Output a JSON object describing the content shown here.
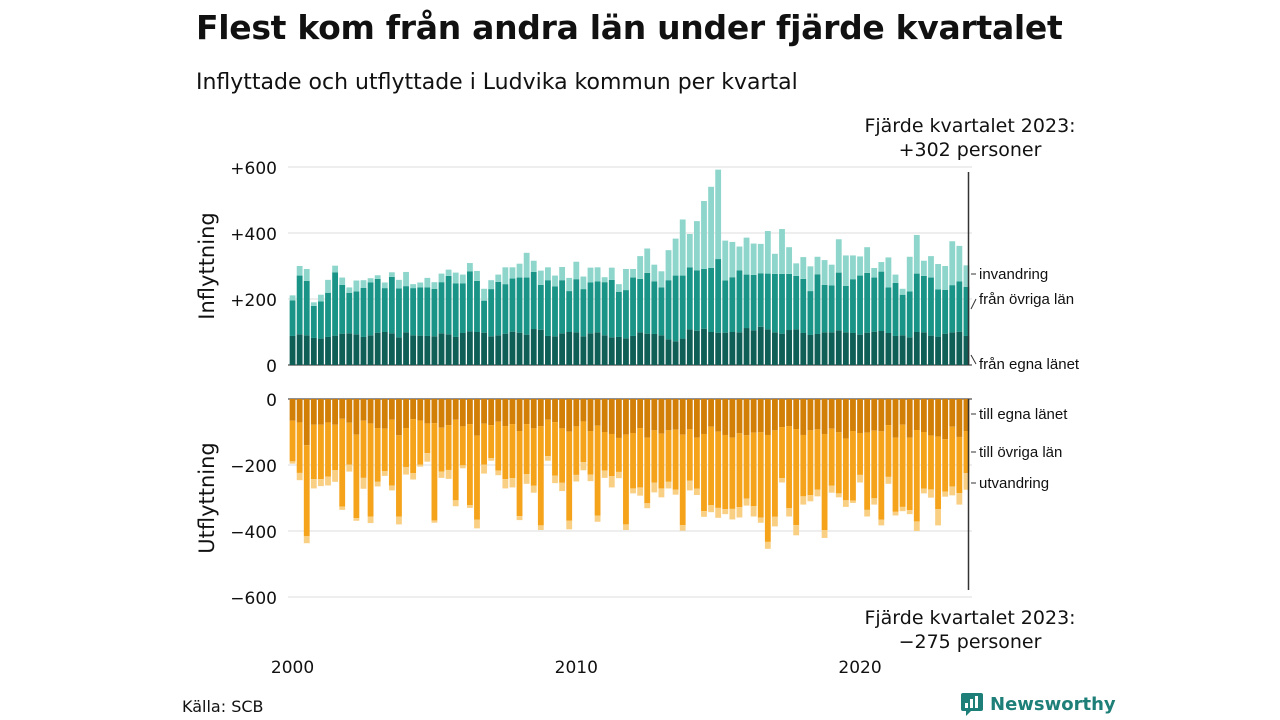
{
  "title": "Flest kom från andra län under fjärde kvartalet",
  "subtitle": "Inflyttade och utflyttade i Ludvika kommun per kvartal",
  "note_top": {
    "line1": "Fjärde kvartalet 2023:",
    "line2": "+302 personer"
  },
  "note_bottom": {
    "line1": "Fjärde kvartalet 2023:",
    "line2": "−275 personer"
  },
  "source": "Källa: SCB",
  "brand": "Newsworthy",
  "colors": {
    "in_own": "#0f5f57",
    "in_other": "#1a9486",
    "in_immig": "#8ed6cc",
    "out_own": "#d27f08",
    "out_other": "#f5a31a",
    "out_emig": "#f9cf83",
    "grid": "#dddddd",
    "brand": "#1e7f79"
  },
  "chart_data": {
    "type": "bar",
    "stacked": true,
    "x_start": "2000 Q1",
    "x_end": "2023 Q4",
    "x_ticks": [
      "2000",
      "2010",
      "2020"
    ],
    "panels": [
      {
        "axis_label": "Inflyttning",
        "ylim": [
          0,
          600
        ],
        "y_ticks": [
          "0",
          "+200",
          "+400",
          "+600"
        ],
        "series": [
          {
            "name": "från egna länet",
            "values": [
              88,
              93,
              90,
              82,
              80,
              85,
              89,
              95,
              96,
              93,
              85,
              90,
              98,
              100,
              96,
              84,
              99,
              90,
              89,
              88,
              87,
              96,
              93,
              85,
              97,
              102,
              100,
              98,
              87,
              90,
              95,
              101,
              98,
              92,
              109,
              107,
              88,
              87,
              96,
              100,
              99,
              87,
              96,
              99,
              90,
              84,
              85,
              81,
              88,
              99,
              95,
              94,
              90,
              78,
              72,
              80,
              108,
              104,
              110,
              100,
              98,
              98,
              100,
              99,
              112,
              105,
              116,
              108,
              99,
              95,
              106,
              108,
              97,
              91,
              94,
              99,
              99,
              105,
              99,
              97,
              92,
              98,
              101,
              103,
              97,
              88,
              90,
              84,
              100,
              99,
              89,
              86,
              95,
              99,
              101,
              88
            ]
          },
          {
            "name": "från övriga län",
            "values": [
              108,
              178,
              165,
              97,
              113,
              134,
              192,
              148,
              123,
              130,
              149,
              160,
              163,
              133,
              171,
              148,
              140,
              143,
              146,
              147,
              144,
              155,
              177,
              162,
              150,
              182,
              155,
              97,
              143,
              162,
              150,
              161,
              167,
              173,
              173,
              136,
              169,
              151,
              161,
              124,
              161,
              143,
              154,
              154,
              161,
              174,
              137,
              146,
              177,
              162,
              184,
              159,
              145,
              179,
              199,
              191,
              188,
              183,
              181,
              194,
              223,
              158,
              166,
              188,
              162,
              168,
              162,
              169,
              177,
              181,
              170,
              162,
              164,
              133,
              181,
              144,
              142,
              175,
              141,
              163,
              179,
              181,
              164,
              180,
              138,
              161,
              123,
              139,
              177,
              171,
              176,
              143,
              133,
              143,
              152,
              149
            ]
          },
          {
            "name": "invandring",
            "values": [
              15,
              29,
              36,
              11,
              20,
              39,
              20,
              22,
              16,
              33,
              23,
              13,
              11,
              17,
              14,
              26,
              43,
              12,
              15,
              29,
              20,
              26,
              19,
              33,
              27,
              25,
              30,
              36,
              27,
              22,
              51,
              34,
              42,
              75,
              34,
              43,
              39,
              33,
              40,
              40,
              53,
              38,
              45,
              43,
              15,
              37,
              23,
              64,
              26,
              69,
              74,
              51,
              49,
              91,
              112,
              170,
              101,
              149,
              206,
              246,
              271,
              121,
              107,
              72,
              112,
              95,
              89,
              129,
              61,
              136,
              81,
              38,
              66,
              75,
              53,
              75,
              63,
              101,
              92,
              72,
              58,
              78,
              29,
              29,
              91,
              25,
              18,
              105,
              117,
              46,
              65,
              77,
              72,
              133,
              108,
              65
            ]
          }
        ]
      },
      {
        "axis_label": "Utflyttning",
        "ylim": [
          -600,
          0
        ],
        "y_ticks": [
          "0",
          "−200",
          "−400",
          "−600"
        ],
        "series": [
          {
            "name": "till egna länet",
            "values": [
              -66,
              -71,
              -140,
              -78,
              -78,
              -71,
              -78,
              -60,
              -72,
              -108,
              -66,
              -74,
              -88,
              -90,
              -63,
              -110,
              -88,
              -61,
              -65,
              -74,
              -73,
              -87,
              -79,
              -63,
              -83,
              -76,
              -111,
              -75,
              -79,
              -69,
              -82,
              -76,
              -97,
              -76,
              -89,
              -82,
              -63,
              -70,
              -89,
              -99,
              -83,
              -68,
              -97,
              -81,
              -100,
              -106,
              -118,
              -108,
              -103,
              -88,
              -117,
              -95,
              -105,
              -95,
              -93,
              -108,
              -92,
              -117,
              -106,
              -84,
              -99,
              -109,
              -117,
              -104,
              -110,
              -102,
              -101,
              -109,
              -95,
              -85,
              -82,
              -91,
              -109,
              -95,
              -92,
              -106,
              -90,
              -101,
              -120,
              -97,
              -103,
              -102,
              -96,
              -98,
              -79,
              -117,
              -78,
              -117,
              -94,
              -100,
              -111,
              -114,
              -122,
              -84,
              -115,
              -97
            ]
          },
          {
            "name": "till övriga län",
            "values": [
              -123,
              -153,
              -276,
              -165,
              -165,
              -164,
              -138,
              -266,
              -127,
              -253,
              -173,
              -282,
              -163,
              -129,
              -199,
              -246,
              -118,
              -164,
              -134,
              -90,
              -295,
              -133,
              -136,
              -244,
              -118,
              -246,
              -255,
              -124,
              -100,
              -148,
              -161,
              -164,
              -258,
              -152,
              -174,
              -301,
              -110,
              -162,
              -165,
              -270,
              -147,
              -123,
              -132,
              -272,
              -117,
              -128,
              -103,
              -272,
              -168,
              -180,
              -199,
              -158,
              -166,
              -156,
              -182,
              -274,
              -155,
              -155,
              -234,
              -238,
              -231,
              -225,
              -216,
              -224,
              -192,
              -223,
              -258,
              -324,
              -262,
              -155,
              -249,
              -291,
              -186,
              -196,
              -183,
              -291,
              -173,
              -185,
              -187,
              -211,
              -127,
              -234,
              -205,
              -268,
              -157,
              -225,
              -249,
              -220,
              -277,
              -172,
              -163,
              -220,
              -159,
              -181,
              -170,
              -128
            ]
          },
          {
            "name": "utvandring",
            "values": [
              -7,
              -22,
              -21,
              -28,
              -21,
              -27,
              -35,
              -10,
              -21,
              -8,
              -33,
              -20,
              -14,
              -14,
              -15,
              -24,
              -23,
              -19,
              -6,
              -26,
              -7,
              -19,
              -27,
              -18,
              -9,
              -8,
              -26,
              -27,
              -8,
              -14,
              -28,
              -28,
              -12,
              -29,
              -21,
              -14,
              -14,
              -23,
              -25,
              -26,
              -20,
              -25,
              -20,
              -19,
              -22,
              -34,
              -19,
              -17,
              -15,
              -25,
              -15,
              -30,
              -27,
              -20,
              -15,
              -17,
              -30,
              -19,
              -17,
              -21,
              -30,
              -15,
              -32,
              -31,
              -21,
              -31,
              -16,
              -21,
              -29,
              -13,
              -25,
              -31,
              -25,
              -19,
              -20,
              -24,
              -21,
              -12,
              -20,
              -7,
              -23,
              -20,
              -19,
              -17,
              -21,
              -11,
              -13,
              -12,
              -29,
              -14,
              -25,
              -49,
              -15,
              -27,
              -35,
              -50
            ]
          }
        ]
      }
    ]
  }
}
